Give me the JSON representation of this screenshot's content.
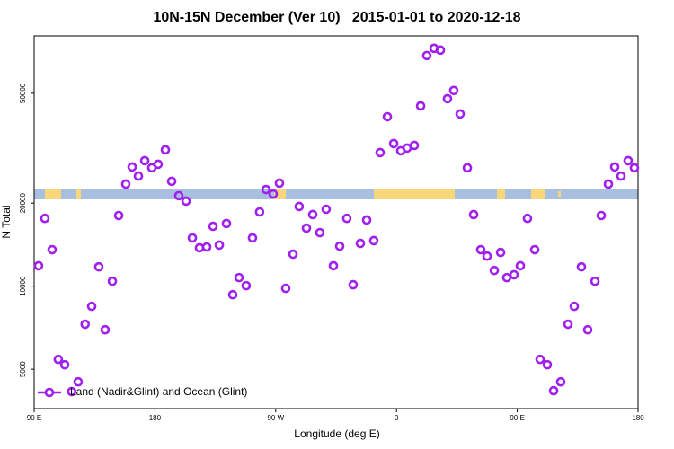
{
  "chart_data": {
    "type": "scatter",
    "title": "10N-15N December (Ver 10)   2015-01-01 to 2020-12-18",
    "x_label": "Longitude (deg E)",
    "y_label": "N Total",
    "xlim": [
      90,
      540
    ],
    "ylim": [
      3600,
      80700
    ],
    "ylog": true,
    "xticks": [
      {
        "value": 90,
        "label": "90 E"
      },
      {
        "value": 180,
        "label": "180"
      },
      {
        "value": 270,
        "label": "90 W"
      },
      {
        "value": 360,
        "label": "0"
      },
      {
        "value": 450,
        "label": "90 E"
      },
      {
        "value": 540,
        "label": "180"
      }
    ],
    "yticks": [
      5000,
      10000,
      20000,
      50000
    ],
    "legend": "bottom-left",
    "series": [
      {
        "name": "Land (Nadir&Glint) and Ocean (Glint)",
        "color": "#a020f0",
        "x": [
          93.3,
          98,
          103.4,
          108,
          112.8,
          118,
          122.8,
          128,
          132.9,
          138.2,
          142.9,
          148.3,
          153,
          158.3,
          163,
          167.7,
          172.4,
          177.7,
          182.4,
          187.8,
          192.5,
          197.8,
          203.2,
          207.9,
          213.2,
          218.6,
          223.3,
          228,
          233.3,
          238,
          242.7,
          248,
          252.7,
          258,
          262.8,
          268.1,
          272.8,
          277.5,
          282.9,
          287.5,
          292.9,
          297.6,
          302.9,
          307.6,
          313,
          317.7,
          323,
          327.7,
          333.1,
          337.8,
          343.1,
          347.8,
          353.2,
          357.9,
          363.2,
          367.9,
          373.3,
          378,
          382.6,
          388,
          392.7,
          398,
          402.7,
          407.4,
          412.8,
          417.5,
          422.8,
          427.5,
          432.9,
          437.6,
          442.2,
          447.6,
          452.3,
          457.6,
          463,
          467,
          472.4,
          477.1,
          482.4,
          487.8,
          492.5,
          497.8,
          502.5,
          507.9,
          512.6,
          517.9,
          522.6,
          527.3,
          532.6,
          537.3
        ],
        "values": [
          11860,
          17600,
          13560,
          5430,
          5190,
          4150,
          4500,
          7280,
          8450,
          11750,
          6950,
          10420,
          18030,
          23440,
          27040,
          25060,
          28500,
          26850,
          27660,
          31190,
          23990,
          21280,
          20330,
          14960,
          13770,
          13870,
          16480,
          14090,
          16870,
          9310,
          10740,
          10040,
          14960,
          18580,
          22400,
          21580,
          23620,
          9820,
          13060,
          19440,
          16230,
          18170,
          15630,
          19000,
          11860,
          13960,
          17600,
          10120,
          14290,
          17370,
          14620,
          30480,
          41110,
          32860,
          30950,
          31650,
          32360,
          45000,
          68500,
          72740,
          71660,
          47800,
          51170,
          42070,
          26850,
          18170,
          13560,
          12850,
          11400,
          13250,
          10740,
          11000,
          11860,
          17600,
          13560,
          5430,
          5190,
          4180,
          4500,
          7280,
          8450,
          11750,
          6950,
          10420,
          18030,
          23440,
          27040,
          25060,
          28500,
          26850
        ]
      }
    ]
  }
}
